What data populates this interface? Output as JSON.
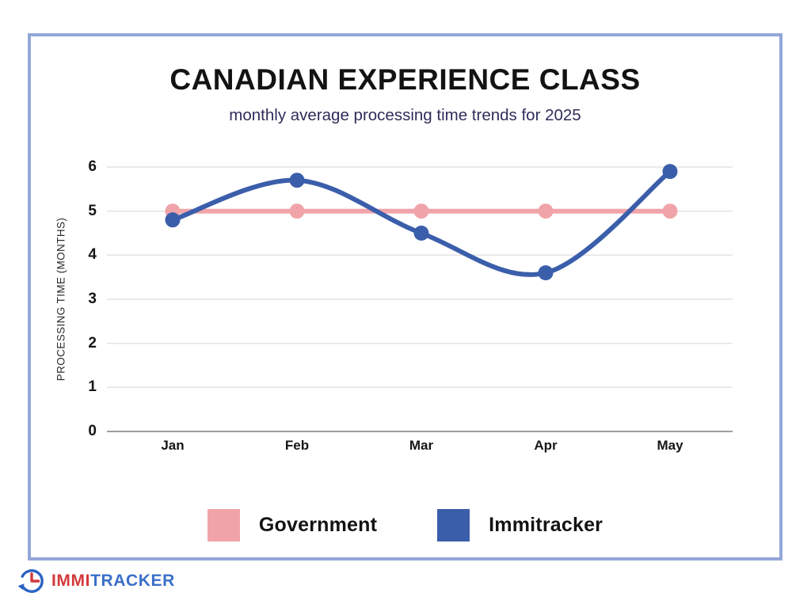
{
  "page": {
    "title": "CANADIAN EXPERIENCE CLASS",
    "subtitle": "monthly average processing time trends for 2025"
  },
  "chart_data": {
    "type": "line",
    "title": "CANADIAN EXPERIENCE CLASS",
    "subtitle": "monthly average processing time trends for 2025",
    "categories": [
      "Jan",
      "Feb",
      "Mar",
      "Apr",
      "May"
    ],
    "series": [
      {
        "name": "Government",
        "color": "#f0a4a9",
        "values": [
          5,
          5,
          5,
          5,
          5
        ],
        "smooth": false
      },
      {
        "name": "Immitracker",
        "color": "#3b5eab",
        "values": [
          4.8,
          5.7,
          4.5,
          3.6,
          5.9
        ],
        "smooth": true
      }
    ],
    "xlabel": "",
    "ylabel": "PROCESSING TIME (MONTHS)",
    "yticks": [
      0,
      1,
      2,
      3,
      4,
      5,
      6
    ],
    "ylim": [
      0,
      6
    ],
    "grid": true,
    "baseline_color": "#9e9e9e",
    "gridline_color": "#e4e4e4",
    "legend_position": "bottom"
  },
  "frame": {
    "border_color": "#94a7d9"
  },
  "logo": {
    "icon": "clock-arrow-icon",
    "text_primary": "IMMI",
    "text_secondary": "TRACKER",
    "color_primary": "#d2393b",
    "color_secondary": "#3a6fc9",
    "icon_ring_color": "#2b62c4",
    "icon_hands_color": "#d2393b"
  }
}
